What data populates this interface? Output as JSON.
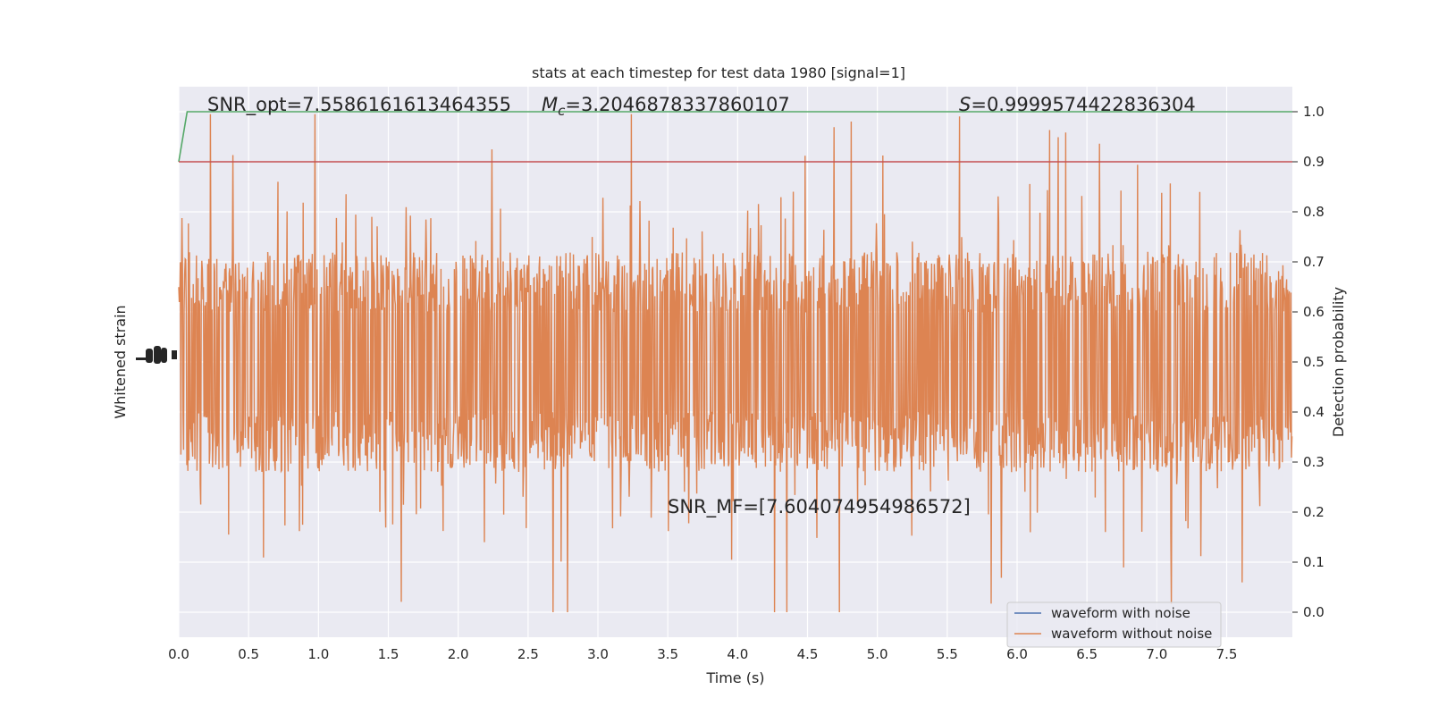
{
  "chart_data": {
    "type": "line",
    "title": "stats at each timestep for test data 1980 [signal=1]",
    "xlabel": "Time (s)",
    "ylabel_left": "Whitened strain",
    "ylabel_right": "Detection probability",
    "xlim": [
      0.0,
      7.97
    ],
    "ylim_right": [
      -0.05,
      1.05
    ],
    "x_ticks": [
      "0.0",
      "0.5",
      "1.0",
      "1.5",
      "2.0",
      "2.5",
      "3.0",
      "3.5",
      "4.0",
      "4.5",
      "5.0",
      "5.5",
      "6.0",
      "6.5",
      "7.0",
      "7.5"
    ],
    "x_tick_values": [
      0,
      0.5,
      1,
      1.5,
      2,
      2.5,
      3,
      3.5,
      4,
      4.5,
      5,
      5.5,
      6,
      6.5,
      7,
      7.5
    ],
    "y_right_ticks": [
      "0.0",
      "0.1",
      "0.2",
      "0.3",
      "0.4",
      "0.5",
      "0.6",
      "0.7",
      "0.8",
      "0.9",
      "1.0"
    ],
    "y_right_tick_values": [
      0,
      0.1,
      0.2,
      0.3,
      0.4,
      0.5,
      0.6,
      0.7,
      0.8,
      0.9,
      1.0
    ],
    "grid": true,
    "background": "#eaeaf2",
    "legend": {
      "placement": "lower-right",
      "entries": [
        {
          "label": "waveform with noise",
          "color": "#4c72b0"
        },
        {
          "label": "waveform without noise",
          "color": "#dd8452"
        }
      ]
    },
    "annotations": {
      "snr_opt": "SNR_opt=7.5586161613464355",
      "mc_symbol": "M",
      "mc_sub": "c",
      "mc_value": "=3.2046878337860107",
      "s_symbol": "S",
      "s_value": "=0.9999574422836304",
      "snr_mf": "SNR_MF=[7.604074954986572]"
    },
    "series": [
      {
        "name": "waveform without noise",
        "color": "#dd8452",
        "envelope_probability_units": {
          "center": 0.5,
          "typical_half_range": 0.22,
          "max_extent": [
            0.0,
            0.995
          ]
        }
      },
      {
        "color": "#55a868",
        "x": [
          0.0,
          0.06,
          7.97
        ],
        "y": [
          0.9,
          1.0,
          1.0
        ]
      },
      {
        "color": "#c44e52",
        "x": [
          0.0,
          7.97
        ],
        "y": [
          0.9,
          0.9
        ]
      }
    ]
  }
}
